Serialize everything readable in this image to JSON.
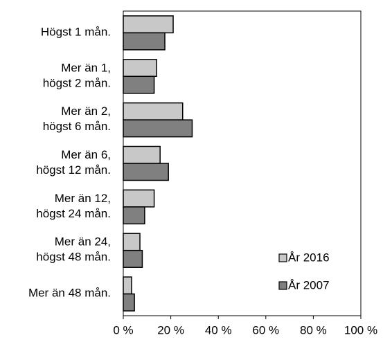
{
  "chart_data": {
    "type": "hbar",
    "categories": [
      [
        "Högst 1 mån."
      ],
      [
        "Mer än 1,",
        "högst 2 mån."
      ],
      [
        "Mer än 2,",
        "högst 6 mån."
      ],
      [
        "Mer än 6,",
        "högst 12 mån."
      ],
      [
        "Mer än 12,",
        "högst 24 mån."
      ],
      [
        "Mer än 24,",
        "högst 48 mån."
      ],
      [
        "Mer än 48 mån."
      ]
    ],
    "series": [
      {
        "name": "År 2016",
        "color": "#c8c8c8",
        "values": [
          21,
          14,
          25,
          15.5,
          13,
          7,
          3.5
        ]
      },
      {
        "name": "År 2007",
        "color": "#808080",
        "values": [
          17.5,
          13,
          29,
          19,
          9,
          8,
          4.7
        ]
      }
    ],
    "xlim": [
      0,
      100
    ],
    "xticks": [
      {
        "value": 0,
        "label": "0 %"
      },
      {
        "value": 20,
        "label": "20 %"
      },
      {
        "value": 40,
        "label": "40 %"
      },
      {
        "value": 60,
        "label": "60 %"
      },
      {
        "value": 80,
        "label": "80 %"
      },
      {
        "value": 100,
        "label": "100 %"
      }
    ],
    "legend": "lower right"
  }
}
